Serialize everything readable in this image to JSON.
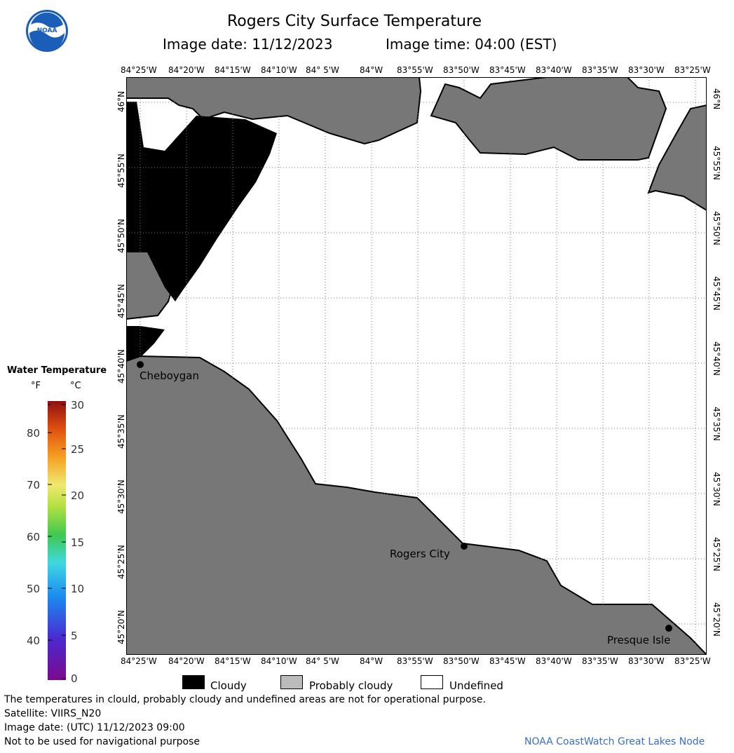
{
  "header": {
    "title": "Rogers City Surface Temperature",
    "image_date": "Image date: 11/12/2023",
    "image_time": "Image time: 04:00 (EST)"
  },
  "logo": {
    "text": "NOAA"
  },
  "map": {
    "lon_labels": [
      "84°25'W",
      "84°20'W",
      "84°15'W",
      "84°10'W",
      "84° 5'W",
      "84°W",
      "83°55'W",
      "83°50'W",
      "83°45'W",
      "83°40'W",
      "83°35'W",
      "83°30'W",
      "83°25'W"
    ],
    "lat_labels": [
      "46°N",
      "45°55'N",
      "45°50'N",
      "45°45'N",
      "45°40'N",
      "45°35'N",
      "45°30'N",
      "45°25'N",
      "45°20'N"
    ],
    "cities": [
      {
        "name": "Cheboygan"
      },
      {
        "name": "Rogers City"
      },
      {
        "name": "Presque Isle"
      }
    ],
    "colors": {
      "land": "#777777",
      "cloud": "#000000",
      "undefined": "#ffffff",
      "grid": "#666666"
    }
  },
  "scale": {
    "title": "Water Temperature",
    "f_unit": "°F",
    "c_unit": "°C",
    "f_ticks": [
      "80",
      "70",
      "60",
      "50",
      "40"
    ],
    "c_ticks": [
      "30",
      "25",
      "20",
      "15",
      "10",
      "5",
      "0"
    ]
  },
  "legend": {
    "cloudy": "Cloudy",
    "probably_cloudy": "Probably cloudy",
    "undefined": "Undefined"
  },
  "footer": {
    "note": "The temperatures in clould, probably cloudy and undefined areas are not for operational purpose.",
    "satellite": "Satellite: VIIRS_N20",
    "utc_date": "Image date: (UTC) 11/12/2023  09:00",
    "nav_warning": "Not to be used for navigational purpose",
    "credit": "NOAA CoastWatch Great Lakes Node"
  }
}
